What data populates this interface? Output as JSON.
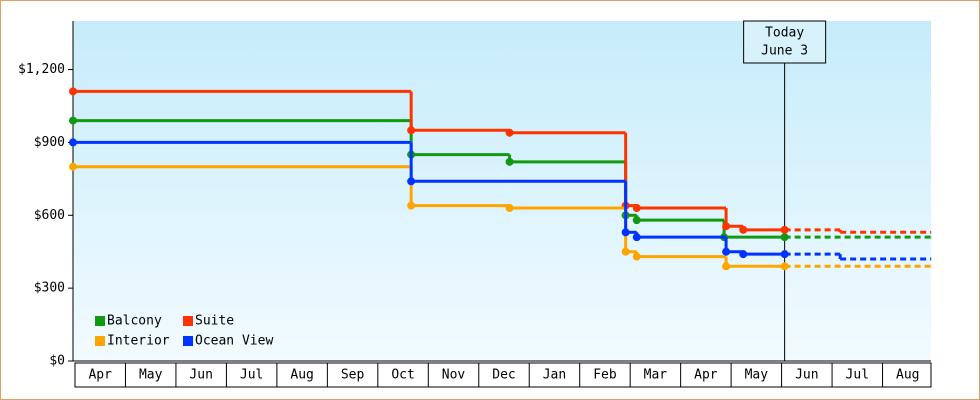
{
  "chart_data": {
    "type": "step",
    "categories": [
      "Apr",
      "May",
      "Jun",
      "Jul",
      "Aug",
      "Sep",
      "Oct",
      "Nov",
      "Dec",
      "Jan",
      "Feb",
      "Mar",
      "Apr",
      "May",
      "Jun",
      "Jul",
      "Aug"
    ],
    "xlim": [
      0,
      17
    ],
    "ylim": [
      0,
      1400
    ],
    "yticks": [
      {
        "value": 0,
        "label": "$0"
      },
      {
        "value": 300,
        "label": "$300"
      },
      {
        "value": 600,
        "label": "$600"
      },
      {
        "value": 900,
        "label": "$900"
      },
      {
        "value": 1200,
        "label": "$1,200"
      }
    ],
    "legend": "lower-left",
    "annotation": {
      "x": 14.1,
      "lines": [
        "Today",
        "June 3"
      ]
    },
    "series": [
      {
        "name": "Balcony",
        "color": "#119911",
        "x": [
          0,
          6.7,
          8.65,
          10.95,
          11.17,
          12.9,
          14.1
        ],
        "values": [
          990,
          850,
          820,
          600,
          580,
          510,
          510
        ],
        "forecast_x": [
          14.1,
          17
        ],
        "forecast_values": [
          510,
          510
        ]
      },
      {
        "name": "Suite",
        "color": "#ff3300",
        "x": [
          0,
          6.7,
          8.65,
          10.95,
          11.17,
          12.94,
          13.28,
          14.1
        ],
        "values": [
          1110,
          950,
          940,
          640,
          630,
          555,
          540,
          540
        ],
        "forecast_x": [
          14.1,
          15.2,
          17
        ],
        "forecast_values": [
          540,
          530,
          530
        ]
      },
      {
        "name": "Interior",
        "color": "#ffa500",
        "x": [
          0,
          6.7,
          8.65,
          10.95,
          11.17,
          12.94,
          14.1
        ],
        "values": [
          800,
          640,
          630,
          450,
          430,
          390,
          390
        ],
        "forecast_x": [
          14.1,
          17
        ],
        "forecast_values": [
          390,
          390
        ]
      },
      {
        "name": "Ocean View",
        "color": "#0033ff",
        "x": [
          0,
          6.7,
          10.95,
          11.17,
          12.94,
          13.28,
          14.1
        ],
        "values": [
          900,
          740,
          530,
          510,
          450,
          440,
          440
        ],
        "forecast_x": [
          14.1,
          15.2,
          17
        ],
        "forecast_values": [
          440,
          420,
          420
        ]
      }
    ]
  }
}
